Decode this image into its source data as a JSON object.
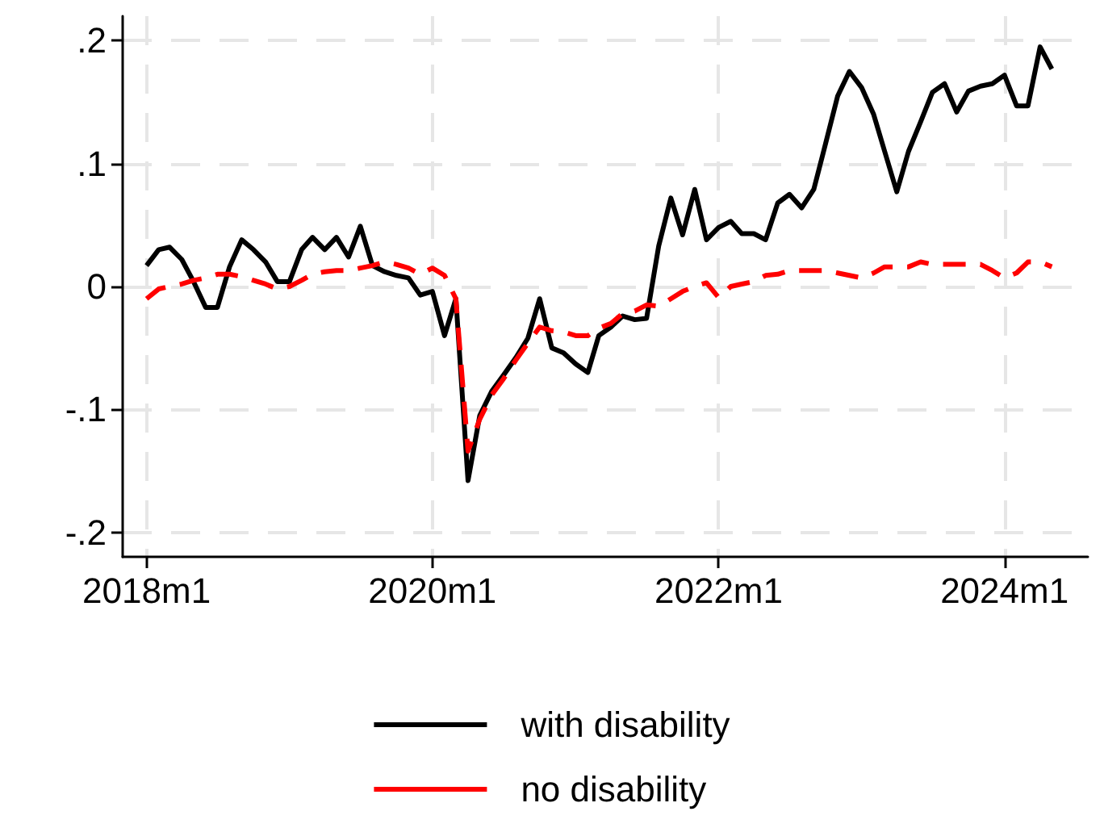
{
  "chart_data": {
    "type": "line",
    "x": [
      "2018-01",
      "2018-02",
      "2018-03",
      "2018-04",
      "2018-05",
      "2018-06",
      "2018-07",
      "2018-08",
      "2018-09",
      "2018-10",
      "2018-11",
      "2018-12",
      "2019-01",
      "2019-02",
      "2019-03",
      "2019-04",
      "2019-05",
      "2019-06",
      "2019-07",
      "2019-08",
      "2019-09",
      "2019-10",
      "2019-11",
      "2019-12",
      "2020-01",
      "2020-02",
      "2020-03",
      "2020-04",
      "2020-05",
      "2020-06",
      "2020-07",
      "2020-08",
      "2020-09",
      "2020-10",
      "2020-11",
      "2020-12",
      "2021-01",
      "2021-02",
      "2021-03",
      "2021-04",
      "2021-05",
      "2021-06",
      "2021-07",
      "2021-08",
      "2021-09",
      "2021-10",
      "2021-11",
      "2021-12",
      "2022-01",
      "2022-02",
      "2022-03",
      "2022-04",
      "2022-05",
      "2022-06",
      "2022-07",
      "2022-08",
      "2022-09",
      "2022-10",
      "2022-11",
      "2022-12",
      "2023-01",
      "2023-02",
      "2023-03",
      "2023-04",
      "2023-05",
      "2023-06",
      "2023-07",
      "2023-08",
      "2023-09",
      "2023-10",
      "2023-11",
      "2023-12",
      "2024-01",
      "2024-02",
      "2024-03",
      "2024-04",
      "2024-05"
    ],
    "series": [
      {
        "name": "with disability",
        "color": "#000000",
        "line_style": "solid",
        "values": [
          0.017,
          0.03,
          0.032,
          0.022,
          0.004,
          -0.017,
          -0.017,
          0.016,
          0.038,
          0.03,
          0.02,
          0.004,
          0.004,
          0.03,
          0.04,
          0.03,
          0.04,
          0.024,
          0.049,
          0.017,
          0.012,
          0.009,
          0.007,
          -0.007,
          -0.004,
          -0.04,
          -0.01,
          -0.158,
          -0.105,
          -0.085,
          -0.072,
          -0.058,
          -0.042,
          -0.01,
          -0.05,
          -0.054,
          -0.063,
          -0.07,
          -0.04,
          -0.033,
          -0.024,
          -0.027,
          -0.026,
          0.033,
          0.072,
          0.042,
          0.079,
          0.038,
          0.048,
          0.053,
          0.043,
          0.043,
          0.038,
          0.068,
          0.075,
          0.064,
          0.079,
          0.116,
          0.155,
          0.175,
          0.162,
          0.14,
          0.11,
          0.077,
          0.11,
          0.134,
          0.158,
          0.165,
          0.142,
          0.159,
          0.163,
          0.165,
          0.172,
          0.147,
          0.147,
          0.195,
          0.177
        ]
      },
      {
        "name": "no disability",
        "color": "#ff0000",
        "line_style": "dashed",
        "values": [
          -0.01,
          -0.002,
          0,
          0.002,
          0.005,
          0.007,
          0.01,
          0.01,
          0.008,
          0.005,
          0.002,
          -0.002,
          0,
          0.005,
          0.01,
          0.012,
          0.013,
          0.013,
          0.015,
          0.017,
          0.02,
          0.018,
          0.015,
          0.01,
          0.015,
          0.009,
          -0.01,
          -0.134,
          -0.108,
          -0.088,
          -0.075,
          -0.06,
          -0.046,
          -0.033,
          -0.036,
          -0.037,
          -0.04,
          -0.04,
          -0.034,
          -0.03,
          -0.022,
          -0.02,
          -0.015,
          -0.016,
          -0.01,
          -0.004,
          0,
          0.003,
          -0.009,
          0,
          0.002,
          0.004,
          0.009,
          0.01,
          0.013,
          0.013,
          0.013,
          0.013,
          0.011,
          0.009,
          0.007,
          0.011,
          0.016,
          0.016,
          0.016,
          0.02,
          0.018,
          0.018,
          0.018,
          0.018,
          0.018,
          0.013,
          0.007,
          0.011,
          0.02,
          0.02,
          0.016
        ]
      }
    ],
    "xlim": [
      "2017-11",
      "2024-08"
    ],
    "xticks": [
      {
        "value": "2018-01",
        "label": "2018m1"
      },
      {
        "value": "2020-01",
        "label": "2020m1"
      },
      {
        "value": "2022-01",
        "label": "2022m1"
      },
      {
        "value": "2024-01",
        "label": "2024m1"
      }
    ],
    "ylim": [
      -0.22,
      0.22
    ],
    "yticks": [
      {
        "value": -0.2,
        "label": "-.2"
      },
      {
        "value": -0.1,
        "label": "-.1"
      },
      {
        "value": 0,
        "label": "0"
      },
      {
        "value": 0.1,
        "label": ".1"
      },
      {
        "value": 0.2,
        "label": ".2"
      }
    ],
    "grid": true,
    "legend": "bottom",
    "marker": "none"
  }
}
